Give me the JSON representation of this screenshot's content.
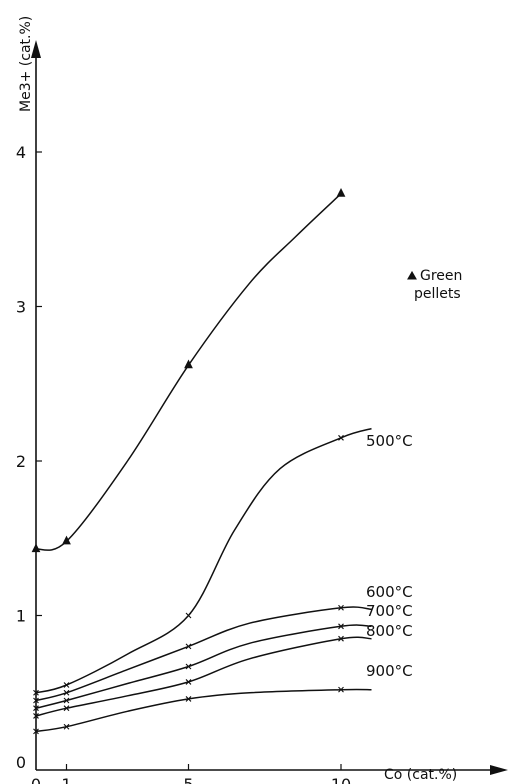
{
  "chart_data": {
    "type": "line",
    "xlabel": "Co (cat.%)",
    "ylabel": "Me3+ (cat.%)",
    "xlim": [
      0,
      14
    ],
    "ylim": [
      0,
      4.5
    ],
    "x_ticks": [
      {
        "value": 0,
        "label": "0"
      },
      {
        "value": 1,
        "label": "1"
      },
      {
        "value": 5,
        "label": "5"
      },
      {
        "value": 10,
        "label": "10"
      }
    ],
    "y_ticks": [
      {
        "value": 0,
        "label": "0"
      },
      {
        "value": 1,
        "label": "1"
      },
      {
        "value": 2,
        "label": "2"
      },
      {
        "value": 3,
        "label": "3"
      },
      {
        "value": 4,
        "label": "4"
      }
    ],
    "legend": {
      "marker": "triangle",
      "label_line1": "Green",
      "label_line2": "pellets",
      "position": "right"
    },
    "series": [
      {
        "name": "Green pellets",
        "marker": "triangle",
        "points": [
          [
            0,
            1.43
          ],
          [
            1,
            1.48
          ],
          [
            5,
            2.62
          ],
          [
            10,
            3.73
          ]
        ],
        "curve": [
          [
            0,
            1.43
          ],
          [
            1,
            1.48
          ],
          [
            3,
            2.0
          ],
          [
            5,
            2.62
          ],
          [
            7,
            3.15
          ],
          [
            8.5,
            3.45
          ],
          [
            10,
            3.73
          ]
        ]
      },
      {
        "name": "500°C",
        "marker": "x",
        "points": [
          [
            0,
            0.5
          ],
          [
            1,
            0.55
          ],
          [
            5,
            1.0
          ],
          [
            10,
            2.15
          ]
        ],
        "curve": [
          [
            0,
            0.5
          ],
          [
            1,
            0.55
          ],
          [
            3,
            0.75
          ],
          [
            5,
            1.0
          ],
          [
            6.5,
            1.55
          ],
          [
            8,
            1.95
          ],
          [
            10,
            2.15
          ],
          [
            11,
            2.21
          ]
        ]
      },
      {
        "name": "600°C",
        "marker": "x",
        "points": [
          [
            0,
            0.45
          ],
          [
            1,
            0.5
          ],
          [
            5,
            0.8
          ],
          [
            10,
            1.05
          ]
        ],
        "curve": [
          [
            0,
            0.45
          ],
          [
            1,
            0.5
          ],
          [
            3,
            0.65
          ],
          [
            5,
            0.8
          ],
          [
            7,
            0.95
          ],
          [
            10,
            1.05
          ],
          [
            11,
            1.04
          ]
        ]
      },
      {
        "name": "700°C",
        "marker": "x",
        "points": [
          [
            0,
            0.4
          ],
          [
            1,
            0.45
          ],
          [
            5,
            0.67
          ],
          [
            10,
            0.93
          ]
        ],
        "curve": [
          [
            0,
            0.4
          ],
          [
            1,
            0.45
          ],
          [
            3,
            0.56
          ],
          [
            5,
            0.67
          ],
          [
            7,
            0.82
          ],
          [
            10,
            0.93
          ],
          [
            11,
            0.93
          ]
        ]
      },
      {
        "name": "800°C",
        "marker": "x",
        "points": [
          [
            0,
            0.35
          ],
          [
            1,
            0.4
          ],
          [
            5,
            0.57
          ],
          [
            10,
            0.85
          ]
        ],
        "curve": [
          [
            0,
            0.35
          ],
          [
            1,
            0.4
          ],
          [
            3,
            0.48
          ],
          [
            5,
            0.57
          ],
          [
            7,
            0.72
          ],
          [
            10,
            0.85
          ],
          [
            11,
            0.85
          ]
        ]
      },
      {
        "name": "900°C",
        "marker": "x",
        "points": [
          [
            0,
            0.25
          ],
          [
            1,
            0.28
          ],
          [
            5,
            0.46
          ],
          [
            10,
            0.52
          ]
        ],
        "curve": [
          [
            0,
            0.25
          ],
          [
            1,
            0.28
          ],
          [
            3,
            0.38
          ],
          [
            5,
            0.46
          ],
          [
            7,
            0.5
          ],
          [
            10,
            0.52
          ],
          [
            11,
            0.52
          ]
        ]
      }
    ],
    "series_label_text": [
      "500°C",
      "600°C",
      "700°C",
      "800°C",
      "900°C"
    ]
  }
}
